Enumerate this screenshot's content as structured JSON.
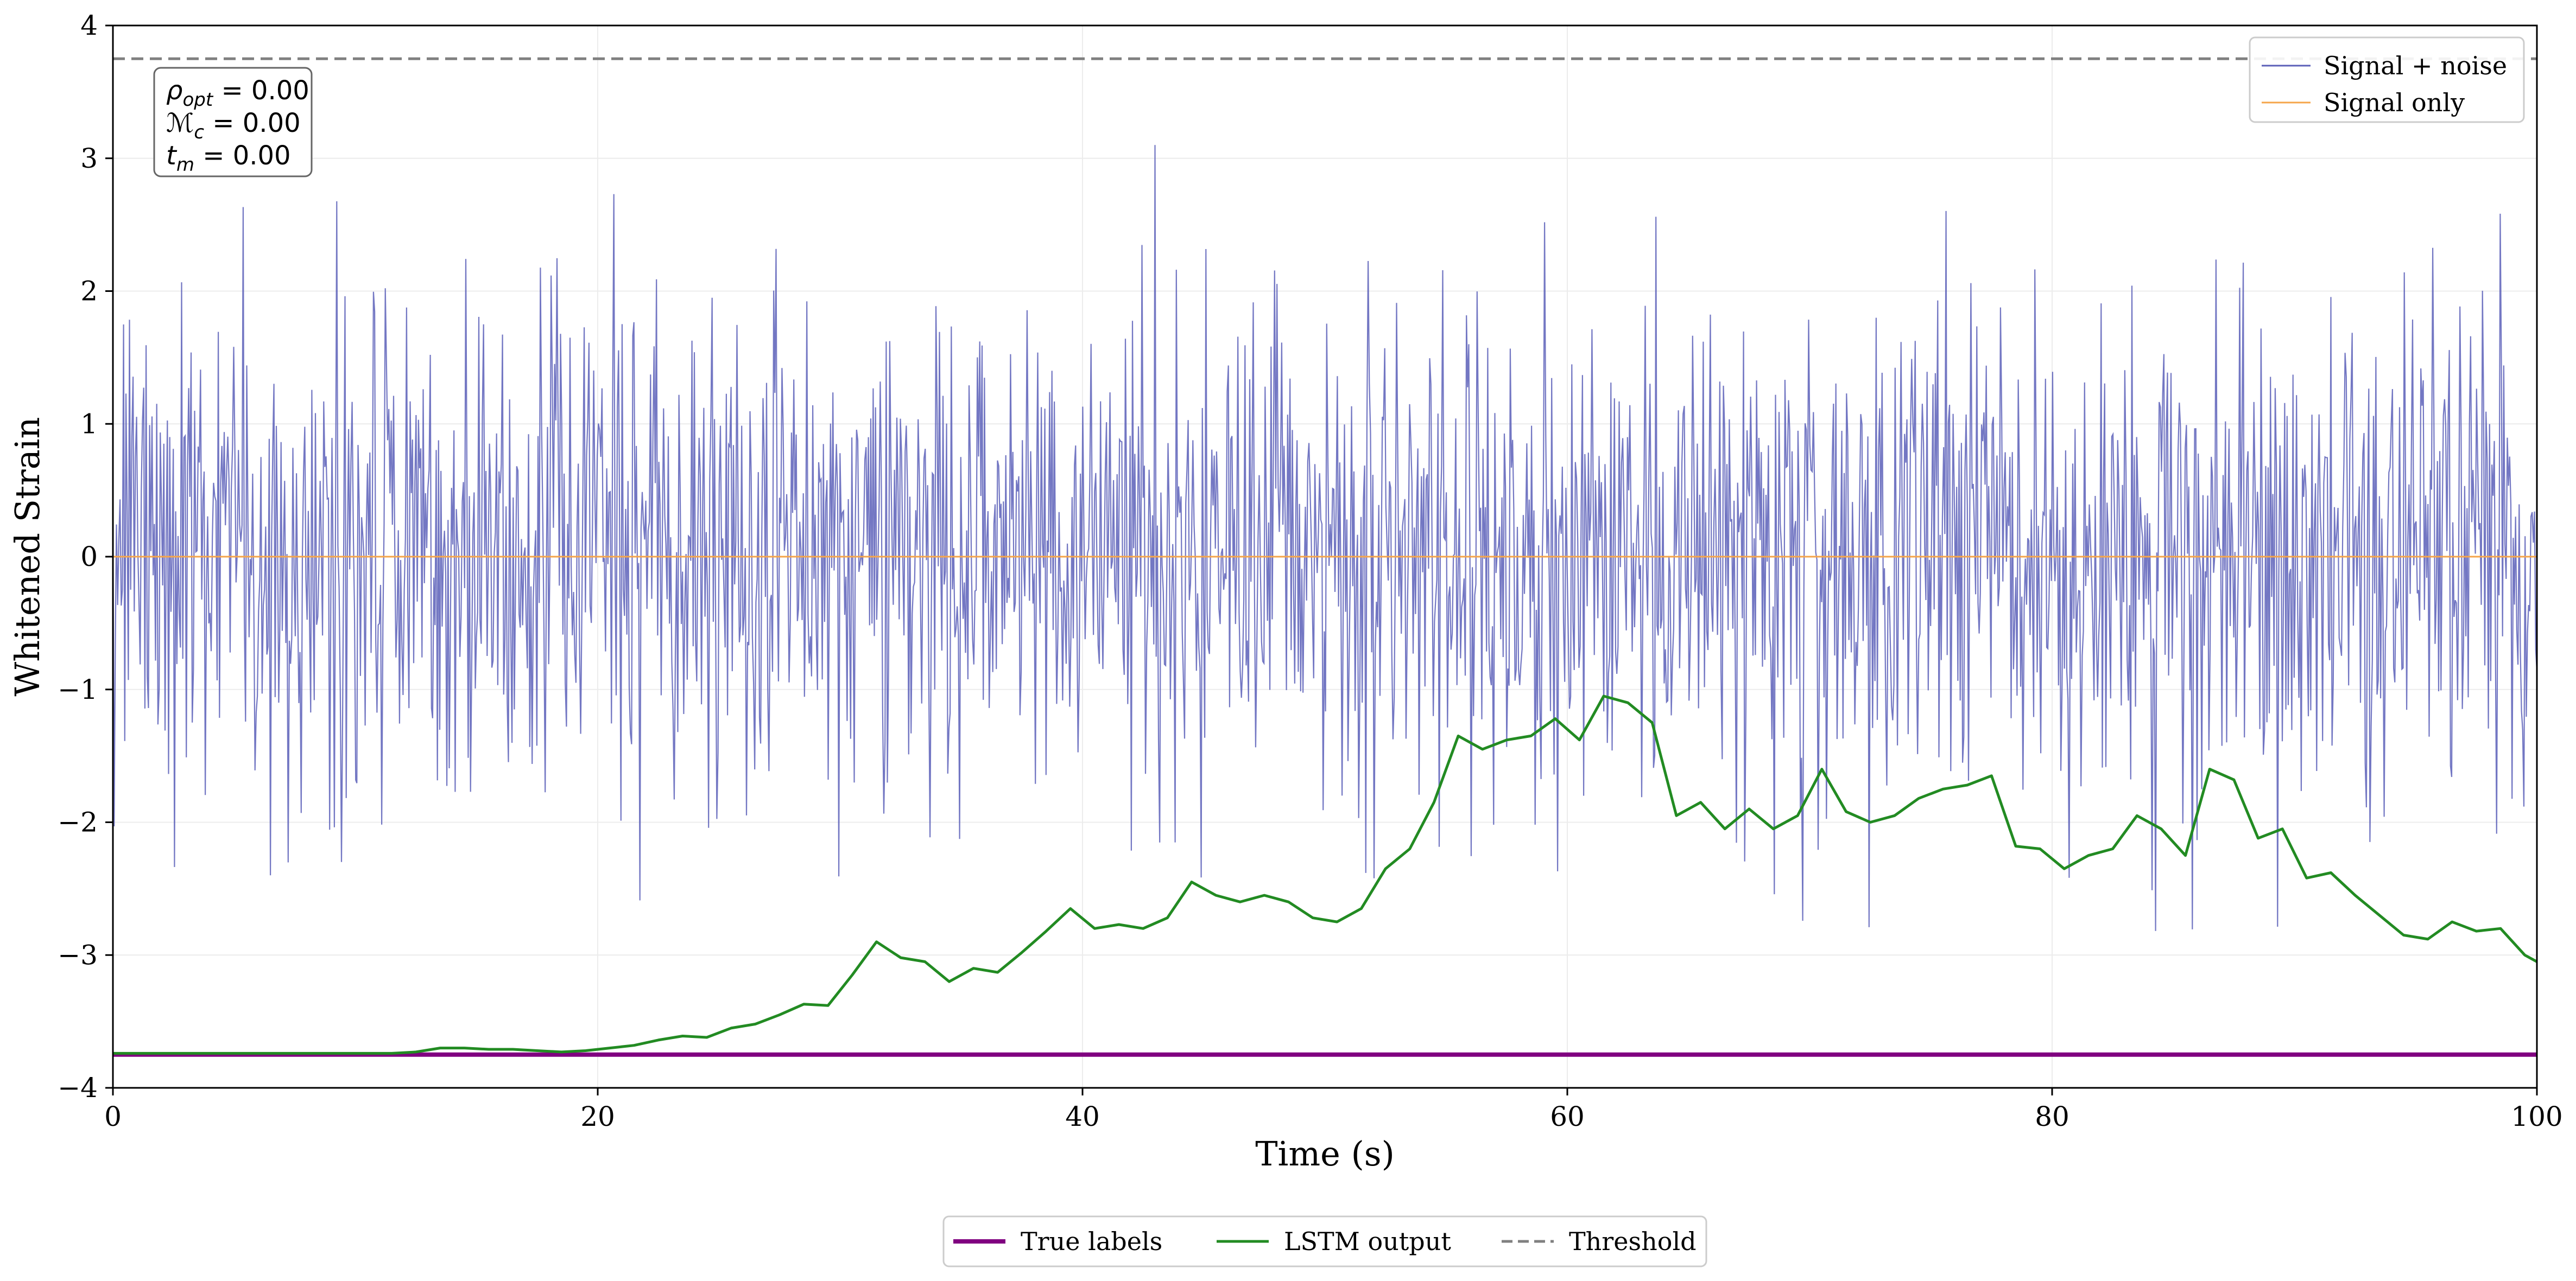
{
  "chart_data": {
    "type": "line",
    "xlabel": "Time (s)",
    "ylabel": "Whitened Strain",
    "xlim": [
      0,
      100
    ],
    "ylim": [
      -4,
      4
    ],
    "x_ticks": [
      {
        "value": 0,
        "label": "0"
      },
      {
        "value": 20,
        "label": "20"
      },
      {
        "value": 40,
        "label": "40"
      },
      {
        "value": 60,
        "label": "60"
      },
      {
        "value": 80,
        "label": "80"
      },
      {
        "value": 100,
        "label": "100"
      }
    ],
    "y_ticks": [
      {
        "value": -4,
        "label": "−4"
      },
      {
        "value": -3,
        "label": "−3"
      },
      {
        "value": -2,
        "label": "−2"
      },
      {
        "value": -1,
        "label": "−1"
      },
      {
        "value": 0,
        "label": "0"
      },
      {
        "value": 1,
        "label": "1"
      },
      {
        "value": 2,
        "label": "2"
      },
      {
        "value": 3,
        "label": "3"
      },
      {
        "value": 4,
        "label": "4"
      }
    ],
    "grid": true,
    "annotation": {
      "lines": [
        {
          "base": "ρ",
          "sub": "opt",
          "value": " = 0.00"
        },
        {
          "base": "ℳ",
          "sub": "c",
          "value": " = 0.00"
        },
        {
          "base": "t",
          "sub": "m",
          "value": " = 0.00"
        }
      ]
    },
    "legend_upper": {
      "position": "upper-right",
      "entries": [
        {
          "label": "Signal + noise",
          "color": "#5b5fb8"
        },
        {
          "label": "Signal only",
          "color": "#f5a54a"
        }
      ]
    },
    "legend_lower": {
      "position": "below",
      "entries": [
        {
          "label": "True labels",
          "color": "#800080",
          "style": "solid-thick"
        },
        {
          "label": "LSTM output",
          "color": "#228b22",
          "style": "solid"
        },
        {
          "label": "Threshold",
          "color": "#808080",
          "style": "dashed"
        }
      ]
    },
    "series": [
      {
        "name": "Signal + noise",
        "color": "#5b5fb8",
        "kind": "noise",
        "n_points": 2048,
        "x_range": [
          0,
          100
        ],
        "std": 0.9,
        "y_clip": [
          -4,
          3.1
        ]
      },
      {
        "name": "Signal only",
        "color": "#f5a54a",
        "x": [
          0,
          100
        ],
        "y": [
          0,
          0
        ]
      },
      {
        "name": "Threshold",
        "color": "#808080",
        "dashed": true,
        "x": [
          0,
          100
        ],
        "y": [
          3.75,
          3.75
        ]
      },
      {
        "name": "True labels",
        "color": "#800080",
        "x": [
          0,
          100
        ],
        "y": [
          -3.75,
          -3.75
        ]
      },
      {
        "name": "LSTM output",
        "color": "#228b22",
        "x": [
          0,
          2,
          4,
          6,
          8,
          10,
          11.5,
          12.5,
          13.5,
          14.5,
          15.5,
          16.5,
          17.5,
          18.5,
          19.5,
          20.5,
          21.5,
          22.5,
          23.5,
          24.5,
          25.5,
          26.5,
          27.5,
          28.5,
          29.5,
          30.5,
          31.5,
          32.5,
          33.5,
          34.5,
          35.5,
          36.5,
          37.5,
          38.5,
          39.5,
          40.5,
          41.5,
          42.5,
          43.5,
          44.5,
          45.5,
          46.5,
          47.5,
          48.5,
          49.5,
          50.5,
          51.5,
          52.5,
          53.5,
          54.5,
          55.5,
          56.5,
          57.5,
          58.5,
          59.5,
          60.5,
          61.5,
          62.5,
          63.5,
          64.5,
          65.5,
          66.5,
          67.5,
          68.5,
          69.5,
          70.5,
          71.5,
          72.5,
          73.5,
          74.5,
          75.5,
          76.5,
          77.5,
          78.5,
          79.5,
          80.5,
          81.5,
          82.5,
          83.5,
          84.5,
          85.5,
          86.5,
          87.5,
          88.5,
          89.5,
          90.5,
          91.5,
          92.5,
          93.5,
          94.5,
          95.5,
          96.5,
          97.5,
          98.5,
          99.5,
          100
        ],
        "y": [
          -3.74,
          -3.74,
          -3.74,
          -3.74,
          -3.74,
          -3.74,
          -3.74,
          -3.73,
          -3.7,
          -3.7,
          -3.71,
          -3.71,
          -3.72,
          -3.73,
          -3.72,
          -3.7,
          -3.68,
          -3.64,
          -3.61,
          -3.62,
          -3.55,
          -3.52,
          -3.45,
          -3.37,
          -3.38,
          -3.15,
          -2.9,
          -3.02,
          -3.05,
          -3.2,
          -3.1,
          -3.13,
          -2.98,
          -2.82,
          -2.65,
          -2.8,
          -2.77,
          -2.8,
          -2.72,
          -2.45,
          -2.55,
          -2.6,
          -2.55,
          -2.6,
          -2.72,
          -2.75,
          -2.65,
          -2.35,
          -2.2,
          -1.85,
          -1.35,
          -1.45,
          -1.38,
          -1.35,
          -1.22,
          -1.38,
          -1.05,
          -1.1,
          -1.25,
          -1.95,
          -1.85,
          -2.05,
          -1.9,
          -2.05,
          -1.95,
          -1.6,
          -1.92,
          -2.0,
          -1.95,
          -1.82,
          -1.75,
          -1.72,
          -1.65,
          -2.18,
          -2.2,
          -2.35,
          -2.25,
          -2.2,
          -1.95,
          -2.05,
          -2.25,
          -1.6,
          -1.68,
          -2.12,
          -2.05,
          -2.42,
          -2.38,
          -2.55,
          -2.7,
          -2.85,
          -2.88,
          -2.75,
          -2.82,
          -2.8,
          -3.0,
          -3.05
        ]
      }
    ]
  }
}
